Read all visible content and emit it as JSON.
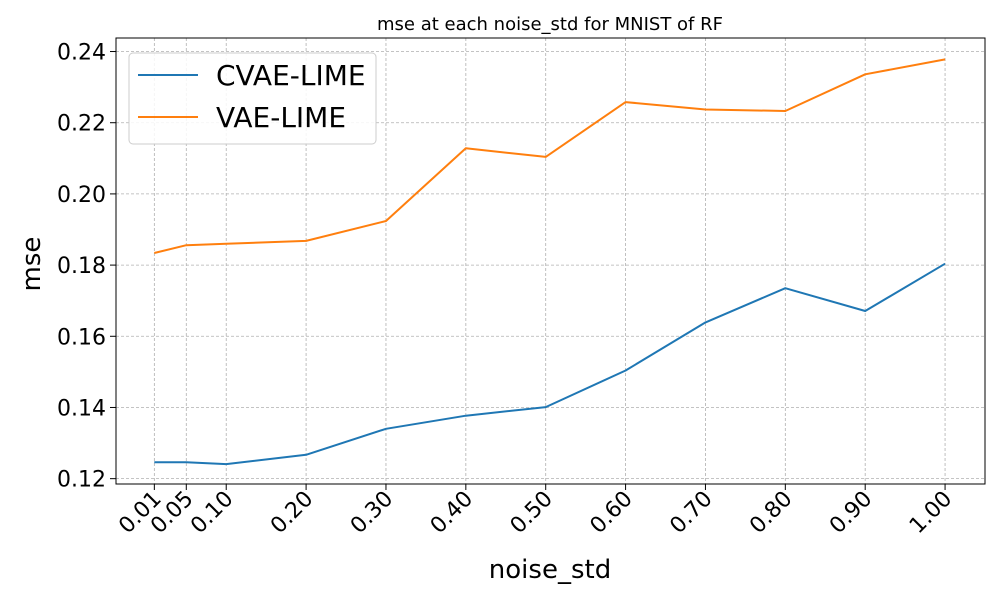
{
  "chart_data": {
    "type": "line",
    "title": "mse at each noise_std for MNIST of RF",
    "xlabel": "noise_std",
    "ylabel": "mse",
    "x": [
      0.01,
      0.05,
      0.1,
      0.2,
      0.3,
      0.4,
      0.5,
      0.6,
      0.7,
      0.8,
      0.9,
      1.0
    ],
    "x_tick_labels": [
      "0.01",
      "0.05",
      "0.10",
      "0.20",
      "0.30",
      "0.40",
      "0.50",
      "0.60",
      "0.70",
      "0.80",
      "0.90",
      "1.00"
    ],
    "xlim": [
      -0.038,
      1.05
    ],
    "ylim": [
      0.1185,
      0.2438
    ],
    "y_ticks": [
      0.12,
      0.14,
      0.16,
      0.18,
      0.2,
      0.22,
      0.24
    ],
    "y_tick_labels": [
      "0.12",
      "0.14",
      "0.16",
      "0.18",
      "0.20",
      "0.22",
      "0.24"
    ],
    "grid": true,
    "legend_position": "upper-left",
    "series": [
      {
        "name": "CVAE-LIME",
        "color": "#1f77b4",
        "values": [
          0.1246,
          0.1246,
          0.1241,
          0.1267,
          0.134,
          0.1377,
          0.1401,
          0.1504,
          0.1639,
          0.1735,
          0.1671,
          0.1804
        ]
      },
      {
        "name": "VAE-LIME",
        "color": "#ff7f0e",
        "values": [
          0.1834,
          0.1856,
          0.186,
          0.1868,
          0.1924,
          0.2128,
          0.2104,
          0.2258,
          0.2237,
          0.2233,
          0.2336,
          0.2378
        ]
      }
    ]
  }
}
